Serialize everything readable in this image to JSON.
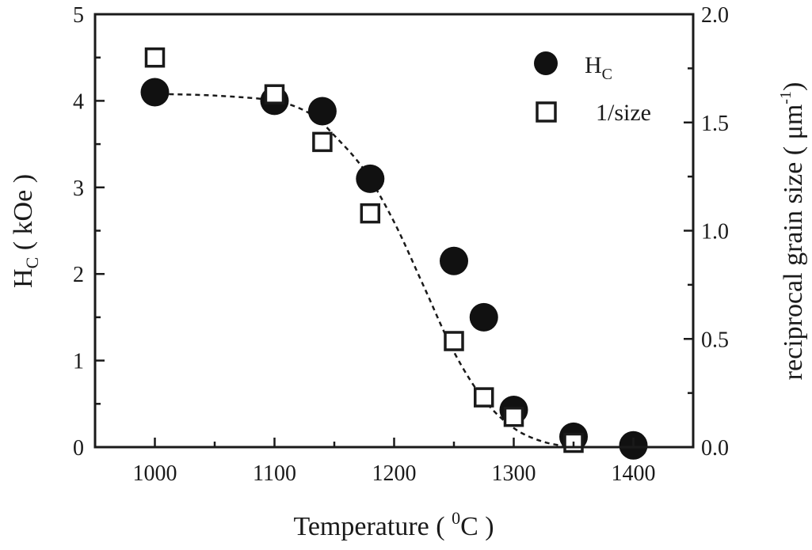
{
  "chart_data": {
    "type": "scatter",
    "xlabel": "Temperature ( ⁰C )",
    "ylabel": "H_C ( kOe )",
    "ylabel_main": "H",
    "ylabel_sub": "C",
    "ylabel_rest": " ( kOe )",
    "y2label": "reciprocal grain size ( μm⁻¹)",
    "xlabel_main": "Temperature ( ",
    "xlabel_sup": "0",
    "xlabel_rest": "C )",
    "y2label_main": "reciprocal grain size ( μm",
    "y2label_sup": "-1",
    "y2label_rest": ")",
    "xlim": [
      950,
      1450
    ],
    "ylim": [
      0,
      5
    ],
    "y2lim": [
      0,
      2.0
    ],
    "x_ticks": [
      1000,
      1100,
      1200,
      1300,
      1400
    ],
    "y_ticks": [
      "0",
      "1",
      "2",
      "3",
      "4",
      "5"
    ],
    "y2_ticks": [
      "0.0",
      "0.5",
      "1.0",
      "1.5",
      "2.0"
    ],
    "legend_position": "top-right",
    "series": [
      {
        "name": "H_C",
        "name_main": "H",
        "name_sub": "C",
        "axis": "left",
        "marker": "filled-circle",
        "x": [
          1000,
          1100,
          1140,
          1180,
          1250,
          1275,
          1300,
          1350,
          1400
        ],
        "y": [
          4.1,
          4.0,
          3.88,
          3.1,
          2.15,
          1.5,
          0.43,
          0.12,
          0.02
        ]
      },
      {
        "name": "1/size",
        "axis": "right",
        "marker": "open-square",
        "x": [
          1000,
          1100,
          1140,
          1180,
          1250,
          1275,
          1300,
          1350
        ],
        "y": [
          1.8,
          1.63,
          1.41,
          1.08,
          0.49,
          0.23,
          0.14,
          0.02
        ]
      }
    ],
    "fit_curve": {
      "style": "dashed",
      "axis": "left",
      "x": [
        990,
        1000,
        1050,
        1100,
        1130,
        1150,
        1175,
        1200,
        1225,
        1250,
        1275,
        1300,
        1325,
        1350
      ],
      "y": [
        4.08,
        4.08,
        4.06,
        4.0,
        3.85,
        3.6,
        3.2,
        2.6,
        1.85,
        1.1,
        0.55,
        0.22,
        0.06,
        0.0
      ]
    }
  }
}
